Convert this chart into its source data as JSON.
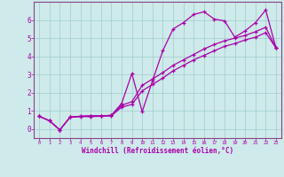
{
  "xlabel": "Windchill (Refroidissement éolien,°C)",
  "background_color": "#ceeaea",
  "grid_color": "#a0cccc",
  "line_color": "#aa00aa",
  "spine_color": "#884488",
  "xlim": [
    -0.5,
    23.5
  ],
  "ylim": [
    -0.5,
    7.0
  ],
  "xticks": [
    0,
    1,
    2,
    3,
    4,
    5,
    6,
    7,
    8,
    9,
    10,
    11,
    12,
    13,
    14,
    15,
    16,
    17,
    18,
    19,
    20,
    21,
    22,
    23
  ],
  "yticks": [
    0,
    1,
    2,
    3,
    4,
    5,
    6
  ],
  "series1_x": [
    0,
    1,
    2,
    3,
    4,
    5,
    6,
    7,
    8,
    9,
    10,
    11,
    12,
    13,
    14,
    15,
    16,
    17,
    18,
    19,
    20,
    21,
    22,
    23
  ],
  "series1_y": [
    0.7,
    0.45,
    -0.05,
    0.65,
    0.7,
    0.72,
    0.72,
    0.75,
    1.4,
    3.05,
    0.95,
    2.65,
    4.3,
    5.5,
    5.85,
    6.3,
    6.45,
    6.05,
    5.95,
    5.05,
    5.4,
    5.85,
    6.55,
    4.45
  ],
  "series2_x": [
    0,
    1,
    2,
    3,
    4,
    5,
    6,
    7,
    8,
    9,
    10,
    11,
    12,
    13,
    14,
    15,
    16,
    17,
    18,
    19,
    20,
    21,
    22,
    23
  ],
  "series2_y": [
    0.7,
    0.45,
    -0.05,
    0.65,
    0.7,
    0.72,
    0.72,
    0.75,
    1.3,
    1.5,
    2.4,
    2.75,
    3.1,
    3.5,
    3.8,
    4.1,
    4.4,
    4.65,
    4.85,
    5.0,
    5.15,
    5.35,
    5.6,
    4.45
  ],
  "series3_x": [
    0,
    1,
    2,
    3,
    4,
    5,
    6,
    7,
    8,
    9,
    10,
    11,
    12,
    13,
    14,
    15,
    16,
    17,
    18,
    19,
    20,
    21,
    22,
    23
  ],
  "series3_y": [
    0.7,
    0.45,
    -0.05,
    0.65,
    0.68,
    0.68,
    0.7,
    0.72,
    1.2,
    1.35,
    2.1,
    2.45,
    2.8,
    3.2,
    3.5,
    3.8,
    4.05,
    4.3,
    4.55,
    4.7,
    4.9,
    5.05,
    5.3,
    4.45
  ]
}
